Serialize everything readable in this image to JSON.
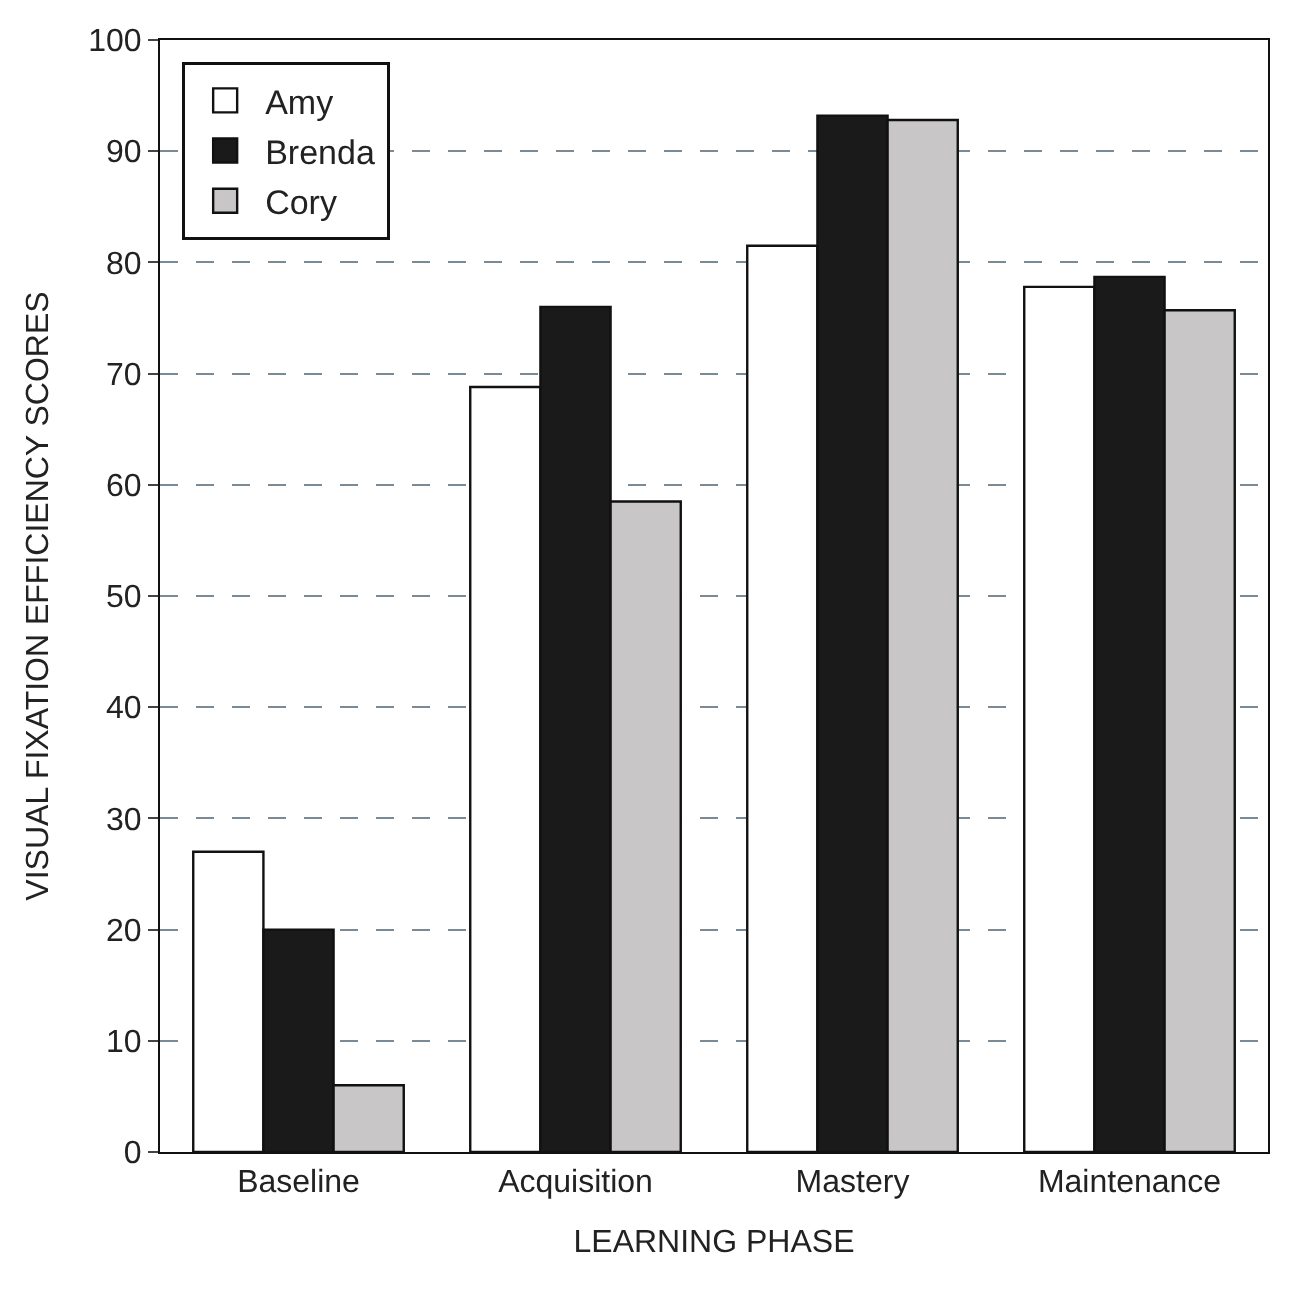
{
  "chart_data": {
    "type": "bar",
    "xlabel": "LEARNING PHASE",
    "ylabel": "VISUAL FIXATION EFFICIENCY SCORES",
    "categories": [
      "Baseline",
      "Acquisition",
      "Mastery",
      "Maintenance"
    ],
    "series": [
      {
        "name": "Amy",
        "color": "#ffffff",
        "values": [
          27,
          68.8,
          81.5,
          77.8
        ]
      },
      {
        "name": "Brenda",
        "color": "#1a1a1a",
        "values": [
          20,
          76,
          93.2,
          78.7
        ]
      },
      {
        "name": "Cory",
        "color": "#c8c6c6",
        "values": [
          6,
          58.5,
          92.8,
          75.7
        ]
      }
    ],
    "ylim": [
      0,
      100
    ],
    "yticks": [
      0,
      10,
      20,
      30,
      40,
      50,
      60,
      70,
      80,
      90,
      100
    ],
    "grid": "y",
    "legend": "top left"
  }
}
